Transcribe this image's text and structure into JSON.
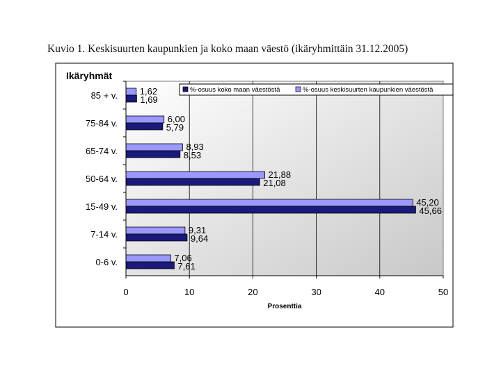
{
  "caption": "Kuvio 1. Keskisuurten kaupunkien ja koko maan väestö (ikäryhmittäin 31.12.2005)",
  "chart_data": {
    "type": "bar",
    "orientation": "horizontal",
    "title": "",
    "ylabel": "Ikäryhmät",
    "xlabel": "Prosenttia",
    "xlim": [
      0,
      50
    ],
    "xticks": [
      0,
      10,
      20,
      30,
      40,
      50
    ],
    "grid": true,
    "legend_position": "top-right",
    "categories": [
      "85 + v.",
      "75-84 v.",
      "65-74 v.",
      "50-64 v.",
      "15-49 v.",
      "7-14 v.",
      "0-6 v."
    ],
    "series": [
      {
        "name": "%-osuus keskisuurten kaupunkien väestöstä",
        "color": "#9999ff",
        "values": [
          1.62,
          6.0,
          8.93,
          21.88,
          45.2,
          9.31,
          7.06
        ],
        "labels": [
          "1,62",
          "6,00",
          "8,93",
          "21,88",
          "45,20",
          "9,31",
          "7,06"
        ]
      },
      {
        "name": "%-osuus koko maan väestöstä",
        "color": "#1a1a7a",
        "values": [
          1.69,
          5.79,
          8.53,
          21.08,
          45.66,
          9.64,
          7.61
        ],
        "labels": [
          "1,69",
          "5,79",
          "8,53",
          "21,08",
          "45,66",
          "9,64",
          "7,61"
        ]
      }
    ]
  }
}
